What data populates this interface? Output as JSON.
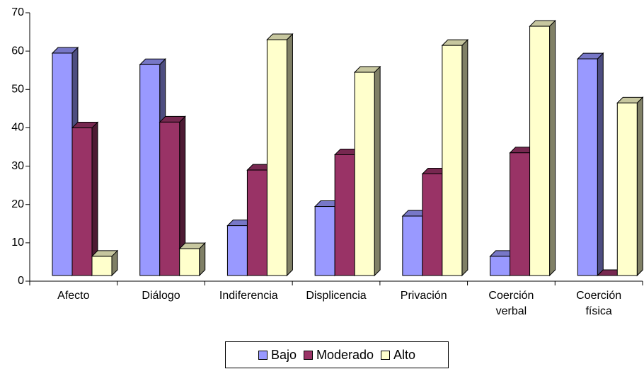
{
  "chart_data": {
    "type": "bar3d",
    "categories": [
      "Afecto",
      "Diálogo",
      "Indiferencia",
      "Displicencia",
      "Privación",
      "Coerción verbal",
      "Coerción física"
    ],
    "series": [
      {
        "name": "Bajo",
        "color": "#9999ff",
        "values": [
          58,
          55,
          13,
          18,
          15.5,
          5,
          56.5
        ]
      },
      {
        "name": "Moderado",
        "color": "#993366",
        "values": [
          38.5,
          40,
          27.5,
          31.5,
          26.5,
          32,
          0
        ]
      },
      {
        "name": "Alto",
        "color": "#ffffcc",
        "values": [
          5,
          7,
          61.5,
          53,
          60,
          65,
          45
        ]
      }
    ],
    "ylim": [
      0,
      70
    ],
    "yticks": [
      0,
      10,
      20,
      30,
      40,
      50,
      60,
      70
    ],
    "legend": "bottom"
  }
}
